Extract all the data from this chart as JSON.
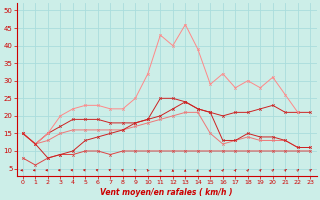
{
  "bg_color": "#cceee8",
  "grid_color": "#aadddd",
  "xlabel": "Vent moyen/en rafales ( km/h )",
  "xlim": [
    -0.5,
    23.5
  ],
  "ylim": [
    3,
    52
  ],
  "xticks": [
    0,
    1,
    2,
    3,
    4,
    5,
    6,
    7,
    8,
    9,
    10,
    11,
    12,
    13,
    14,
    15,
    16,
    17,
    18,
    19,
    20,
    21,
    22,
    23
  ],
  "yticks": [
    5,
    10,
    15,
    20,
    25,
    30,
    35,
    40,
    45,
    50
  ],
  "series": [
    {
      "y": [
        8,
        6,
        8,
        9,
        9,
        10,
        10,
        9,
        10,
        10,
        10,
        10,
        10,
        10,
        10,
        10,
        10,
        10,
        10,
        10,
        10,
        10,
        10,
        10
      ],
      "color": "#dd4444",
      "lw": 0.7,
      "ms": 1.8
    },
    {
      "y": [
        15,
        12,
        13,
        15,
        16,
        16,
        16,
        16,
        16,
        17,
        18,
        19,
        20,
        21,
        21,
        15,
        12,
        13,
        14,
        13,
        13,
        13,
        11,
        11
      ],
      "color": "#ee7777",
      "lw": 0.7,
      "ms": 1.8
    },
    {
      "y": [
        15,
        12,
        15,
        17,
        19,
        19,
        19,
        18,
        18,
        18,
        19,
        20,
        22,
        24,
        22,
        21,
        20,
        21,
        21,
        22,
        23,
        21,
        21,
        21
      ],
      "color": "#cc2222",
      "lw": 0.7,
      "ms": 1.8
    },
    {
      "y": [
        15,
        12,
        15,
        20,
        22,
        23,
        23,
        22,
        22,
        25,
        32,
        43,
        40,
        46,
        39,
        29,
        32,
        28,
        30,
        28,
        31,
        26,
        21,
        null
      ],
      "color": "#ff8888",
      "lw": 0.7,
      "ms": 1.8
    },
    {
      "y": [
        15,
        12,
        8,
        9,
        10,
        13,
        14,
        15,
        16,
        18,
        19,
        25,
        25,
        24,
        22,
        21,
        13,
        13,
        15,
        14,
        14,
        13,
        11,
        11
      ],
      "color": "#cc2222",
      "lw": 0.7,
      "ms": 1.8
    }
  ],
  "arrow_angles": [
    180,
    175,
    170,
    165,
    160,
    155,
    150,
    140,
    130,
    120,
    110,
    100,
    90,
    85,
    80,
    75,
    72,
    70,
    68,
    65,
    63,
    62,
    61,
    60
  ]
}
